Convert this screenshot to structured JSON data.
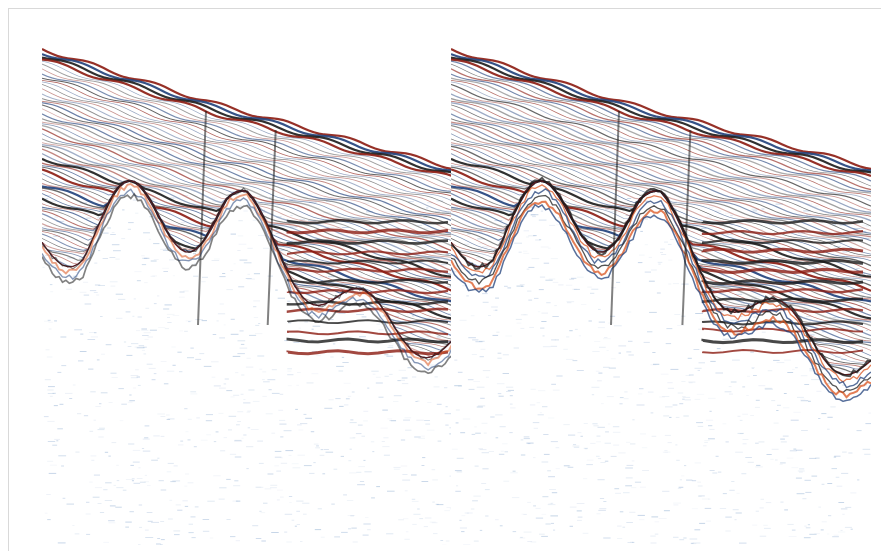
{
  "figure": {
    "panels": [
      {
        "id": "left",
        "description_icon": "seismic-section-icon"
      },
      {
        "id": "right",
        "description_icon": "seismic-section-icon"
      }
    ]
  },
  "colors": {
    "positive": "#8b1a10",
    "positive_mid": "#d9531e",
    "negative": "#1f3f7a",
    "negative_mid": "#6f95c4",
    "dark": "#1a1a1a",
    "background": "#ffffff"
  }
}
